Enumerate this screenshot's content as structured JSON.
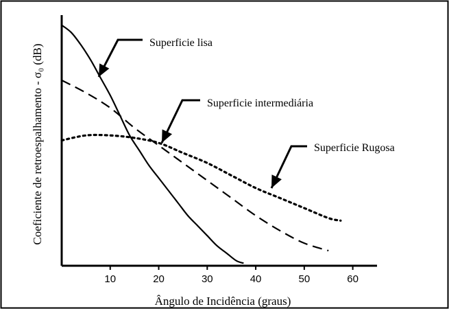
{
  "chart_data": {
    "type": "line",
    "title": "",
    "xlabel": "Ângulo de Incidência (graus)",
    "ylabel": "Coeficiente de retroespalhamento - σ₀ (dB)",
    "xlim": [
      0,
      65
    ],
    "ylim": [
      0,
      1
    ],
    "y_tick_labels": false,
    "x_ticks": [
      10,
      20,
      30,
      40,
      50,
      60
    ],
    "x_tick_labels": [
      "10",
      "20",
      "30",
      "40",
      "50",
      "60"
    ],
    "grid": false,
    "legend": "none (curves labelled by arrow annotations)",
    "series": [
      {
        "name": "Superficie lisa",
        "style": "solid",
        "x": [
          0,
          2,
          4,
          6,
          8,
          10,
          12,
          14,
          16,
          18,
          20,
          22,
          24,
          26,
          28,
          30,
          32,
          34,
          36,
          37.5
        ],
        "y": [
          0.96,
          0.93,
          0.88,
          0.82,
          0.75,
          0.68,
          0.6,
          0.52,
          0.46,
          0.4,
          0.35,
          0.3,
          0.25,
          0.2,
          0.16,
          0.12,
          0.08,
          0.05,
          0.02,
          0.01
        ]
      },
      {
        "name": "Superficie intermediária",
        "style": "dashed",
        "x": [
          0,
          5,
          10,
          15,
          20,
          25,
          30,
          35,
          40,
          45,
          50,
          55
        ],
        "y": [
          0.74,
          0.69,
          0.63,
          0.55,
          0.48,
          0.41,
          0.34,
          0.27,
          0.2,
          0.14,
          0.09,
          0.06
        ]
      },
      {
        "name": "Superficie Rugosa",
        "style": "dotted",
        "x": [
          0,
          5,
          10,
          15,
          20,
          25,
          30,
          35,
          40,
          45,
          50,
          55,
          57.5
        ],
        "y": [
          0.5,
          0.52,
          0.52,
          0.51,
          0.49,
          0.45,
          0.41,
          0.36,
          0.31,
          0.27,
          0.23,
          0.19,
          0.18
        ]
      }
    ],
    "annotations": [
      {
        "text": "Superficie lisa",
        "target_series": "Superficie lisa"
      },
      {
        "text": "Superficie intermediária",
        "target_series": "Superficie intermediária"
      },
      {
        "text": "Superficie Rugosa",
        "target_series": "Superficie Rugosa"
      }
    ]
  }
}
